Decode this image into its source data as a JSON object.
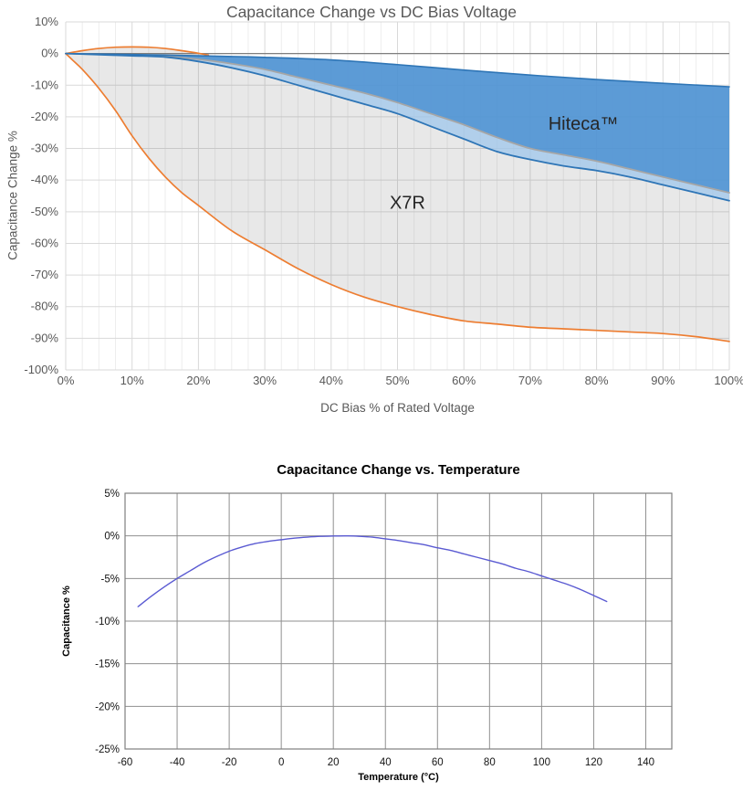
{
  "page": {
    "background": "#ffffff"
  },
  "chart_data": [
    {
      "type": "area",
      "title": "Capacitance Change vs DC Bias Voltage",
      "xlabel": "DC Bias % of Rated Voltage",
      "ylabel": "Capacitance Change %",
      "xlim": [
        0,
        100
      ],
      "ylim": [
        -100,
        10
      ],
      "x_minor_step": 2.5,
      "grid": true,
      "legend_position": "none",
      "grid_color": "#d9d9d9",
      "minor_grid_color": "#ededed",
      "zero_line_color": "#7f7f7f",
      "text_color": "#595959",
      "xticks": {
        "values": [
          0,
          10,
          20,
          30,
          40,
          50,
          60,
          70,
          80,
          90,
          100
        ],
        "labels": [
          "0%",
          "10%",
          "20%",
          "30%",
          "40%",
          "50%",
          "60%",
          "70%",
          "80%",
          "90%",
          "100%"
        ]
      },
      "yticks": {
        "values": [
          10,
          0,
          -10,
          -20,
          -30,
          -40,
          -50,
          -60,
          -70,
          -80,
          -90,
          -100
        ],
        "labels": [
          "10%",
          "0%",
          "-10%",
          "-20%",
          "-30%",
          "-40%",
          "-50%",
          "-60%",
          "-70%",
          "-80%",
          "-90%",
          "-100%"
        ]
      },
      "annotations": [
        {
          "text": "Hiteca™",
          "x": 78,
          "y": -22,
          "color": "#262626",
          "size": 20
        },
        {
          "text": "X7R",
          "x": 51.5,
          "y": -47,
          "color": "#262626",
          "size": 20
        }
      ],
      "series": [
        {
          "name": "x7r-envelope-top",
          "draw": false,
          "color": "none",
          "width": 0,
          "x": [
            0,
            2.5,
            5,
            7.5,
            10,
            12.5,
            15,
            17.5,
            20,
            25,
            30,
            35,
            40,
            45,
            50,
            55,
            60,
            65,
            70,
            75,
            80,
            85,
            90,
            95,
            100
          ],
          "y": [
            0,
            0.9,
            1.6,
            2.0,
            2.1,
            2.0,
            1.6,
            0.9,
            0.1,
            -4.5,
            -7,
            -10,
            -13,
            -16,
            -19,
            -23,
            -27,
            -31,
            -33.5,
            -35.5,
            -37,
            -39,
            -41.5,
            -44,
            -46.5
          ]
        },
        {
          "name": "x7r-min",
          "color": "#ED7D31",
          "width": 1.7,
          "x": [
            0,
            1,
            2.5,
            5,
            7.5,
            10,
            12.5,
            15,
            17.5,
            20,
            25,
            30,
            35,
            40,
            45,
            50,
            55,
            60,
            65,
            70,
            75,
            80,
            85,
            90,
            95,
            100
          ],
          "y": [
            0,
            -2,
            -5,
            -11,
            -18,
            -26,
            -33,
            -39,
            -44,
            -48,
            -56,
            -62,
            -68,
            -73,
            -77,
            -80,
            -82.5,
            -84.5,
            -85.5,
            -86.5,
            -87,
            -87.5,
            -88,
            -88.5,
            -89.5,
            -91
          ]
        },
        {
          "name": "x7r-max",
          "color": "#ED7D31",
          "width": 1.7,
          "x": [
            0,
            2.5,
            5,
            7.5,
            10,
            12.5,
            15,
            17.5,
            20,
            21.5
          ],
          "y": [
            0,
            0.9,
            1.6,
            2.0,
            2.1,
            2.0,
            1.6,
            0.9,
            0.1,
            -0.5
          ]
        },
        {
          "name": "x7r-typical",
          "color": "#A6A6A6",
          "width": 1.8,
          "x": [
            0,
            5,
            10,
            15,
            20,
            25,
            30,
            35,
            40,
            45,
            50,
            55,
            60,
            65,
            70,
            75,
            80,
            85,
            90,
            95,
            100
          ],
          "y": [
            0,
            -0.25,
            -0.5,
            -0.9,
            -1.8,
            -3.2,
            -5,
            -7.5,
            -10,
            -12.5,
            -15.5,
            -19,
            -22.5,
            -26.5,
            -30,
            -32,
            -34,
            -36.5,
            -39,
            -41.5,
            -44
          ]
        },
        {
          "name": "hiteca-min",
          "color": "#2E75B6",
          "width": 1.8,
          "x": [
            0,
            5,
            10,
            15,
            20,
            25,
            30,
            35,
            40,
            45,
            50,
            55,
            60,
            65,
            70,
            75,
            80,
            85,
            90,
            95,
            100
          ],
          "y": [
            0,
            -0.35,
            -0.7,
            -1.1,
            -2.5,
            -4.5,
            -7,
            -10,
            -13,
            -16,
            -19,
            -23,
            -27,
            -31,
            -33.5,
            -35.5,
            -37,
            -39,
            -41.5,
            -44,
            -46.5
          ]
        },
        {
          "name": "hiteca-max",
          "color": "#2E75B6",
          "width": 1.6,
          "x": [
            0,
            10,
            20,
            30,
            40,
            50,
            60,
            70,
            80,
            90,
            100
          ],
          "y": [
            0,
            -0.3,
            -0.7,
            -1.2,
            -2,
            -3.5,
            -5.2,
            -6.8,
            -8.2,
            -9.4,
            -10.5
          ]
        }
      ],
      "bands": [
        {
          "name": "x7r-band",
          "upper": "x7r-envelope-top",
          "lower": "x7r-min",
          "fill": "#6E6E6E",
          "opacity": 0.16
        },
        {
          "name": "overlap-band",
          "upper": "x7r-typical",
          "lower": "hiteca-min",
          "fill": "#9DC3E6",
          "opacity": 0.8
        },
        {
          "name": "hiteca-band",
          "upper": "hiteca-max",
          "lower": "x7r-typical",
          "fill": "#4E92D2",
          "opacity": 0.92
        }
      ]
    },
    {
      "type": "line",
      "title": "Capacitance Change vs. Temperature",
      "xlabel": "Temperature (°C)",
      "ylabel": "Capacitance %",
      "xlim": [
        -60,
        150
      ],
      "ylim": [
        -25,
        5
      ],
      "grid": true,
      "legend_position": "none",
      "grid_color": "#8f8f8f",
      "border_color": "#7f7f7f",
      "text_color": "#141414",
      "xticks": {
        "values": [
          -60,
          -40,
          -20,
          0,
          20,
          40,
          60,
          80,
          100,
          120,
          140
        ],
        "labels": [
          "-60",
          "-40",
          "-20",
          "0",
          "20",
          "40",
          "60",
          "80",
          "100",
          "120",
          "140"
        ]
      },
      "yticks": {
        "values": [
          5,
          0,
          -5,
          -10,
          -15,
          -20,
          -25
        ],
        "labels": [
          "5%",
          "0%",
          "-5%",
          "-10%",
          "-15%",
          "-20%",
          "-25%"
        ]
      },
      "annotations": [],
      "series": [
        {
          "name": "capacitance-vs-temperature",
          "color": "#5A5AD2",
          "width": 1.4,
          "x": [
            -55,
            -50,
            -45,
            -40,
            -35,
            -30,
            -25,
            -20,
            -15,
            -10,
            -5,
            0,
            5,
            10,
            15,
            20,
            25,
            30,
            35,
            40,
            45,
            50,
            55,
            60,
            65,
            70,
            75,
            80,
            85,
            90,
            95,
            100,
            105,
            110,
            115,
            120,
            125
          ],
          "y": [
            -8.3,
            -7.1,
            -6.0,
            -5.0,
            -4.1,
            -3.2,
            -2.45,
            -1.8,
            -1.3,
            -0.9,
            -0.65,
            -0.45,
            -0.27,
            -0.15,
            -0.06,
            -0.02,
            0,
            -0.05,
            -0.15,
            -0.35,
            -0.55,
            -0.8,
            -1.05,
            -1.4,
            -1.7,
            -2.1,
            -2.5,
            -2.9,
            -3.3,
            -3.8,
            -4.2,
            -4.7,
            -5.2,
            -5.7,
            -6.3,
            -7.0,
            -7.7
          ]
        }
      ],
      "bands": []
    }
  ]
}
